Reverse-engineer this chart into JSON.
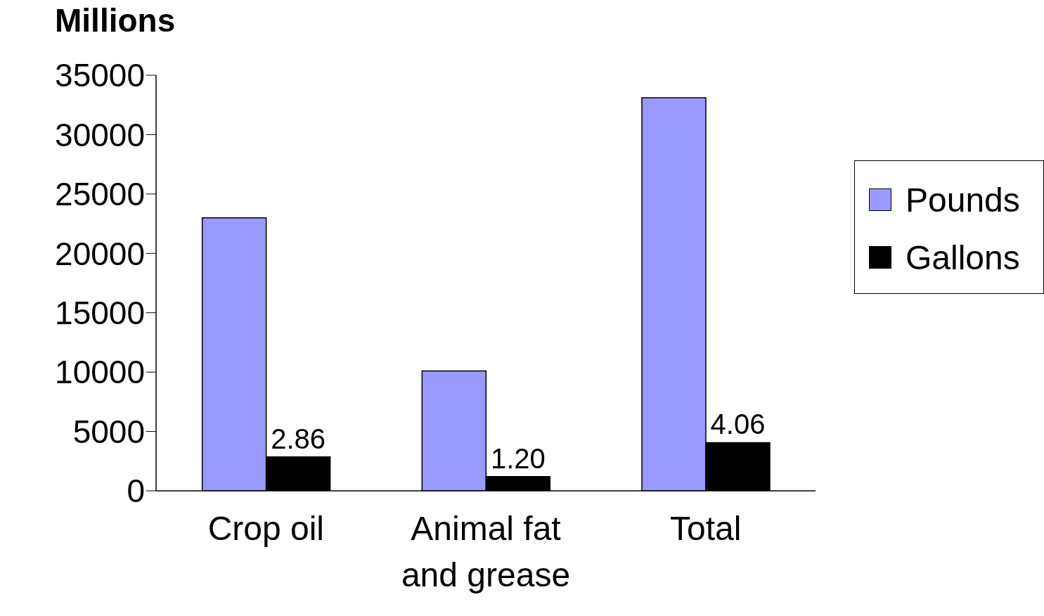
{
  "chart_data": {
    "type": "bar",
    "ylabel": "Millions",
    "categories": [
      "Crop oil",
      "Animal fat and grease",
      "Total"
    ],
    "series": [
      {
        "name": "Pounds",
        "color": "#9999ff",
        "values": [
          23000,
          10100,
          33100
        ]
      },
      {
        "name": "Gallons",
        "color": "#000000",
        "axis": "y2",
        "values": [
          2.86,
          1.2,
          4.06
        ],
        "value_labels": [
          "2.86",
          "1.20",
          "4.06"
        ]
      }
    ],
    "ylim": [
      0,
      35000
    ],
    "y2lim": [
      0,
      35
    ],
    "yticks": [
      0,
      5000,
      10000,
      15000,
      20000,
      25000,
      30000,
      35000
    ],
    "grid": false,
    "legend": "right"
  }
}
